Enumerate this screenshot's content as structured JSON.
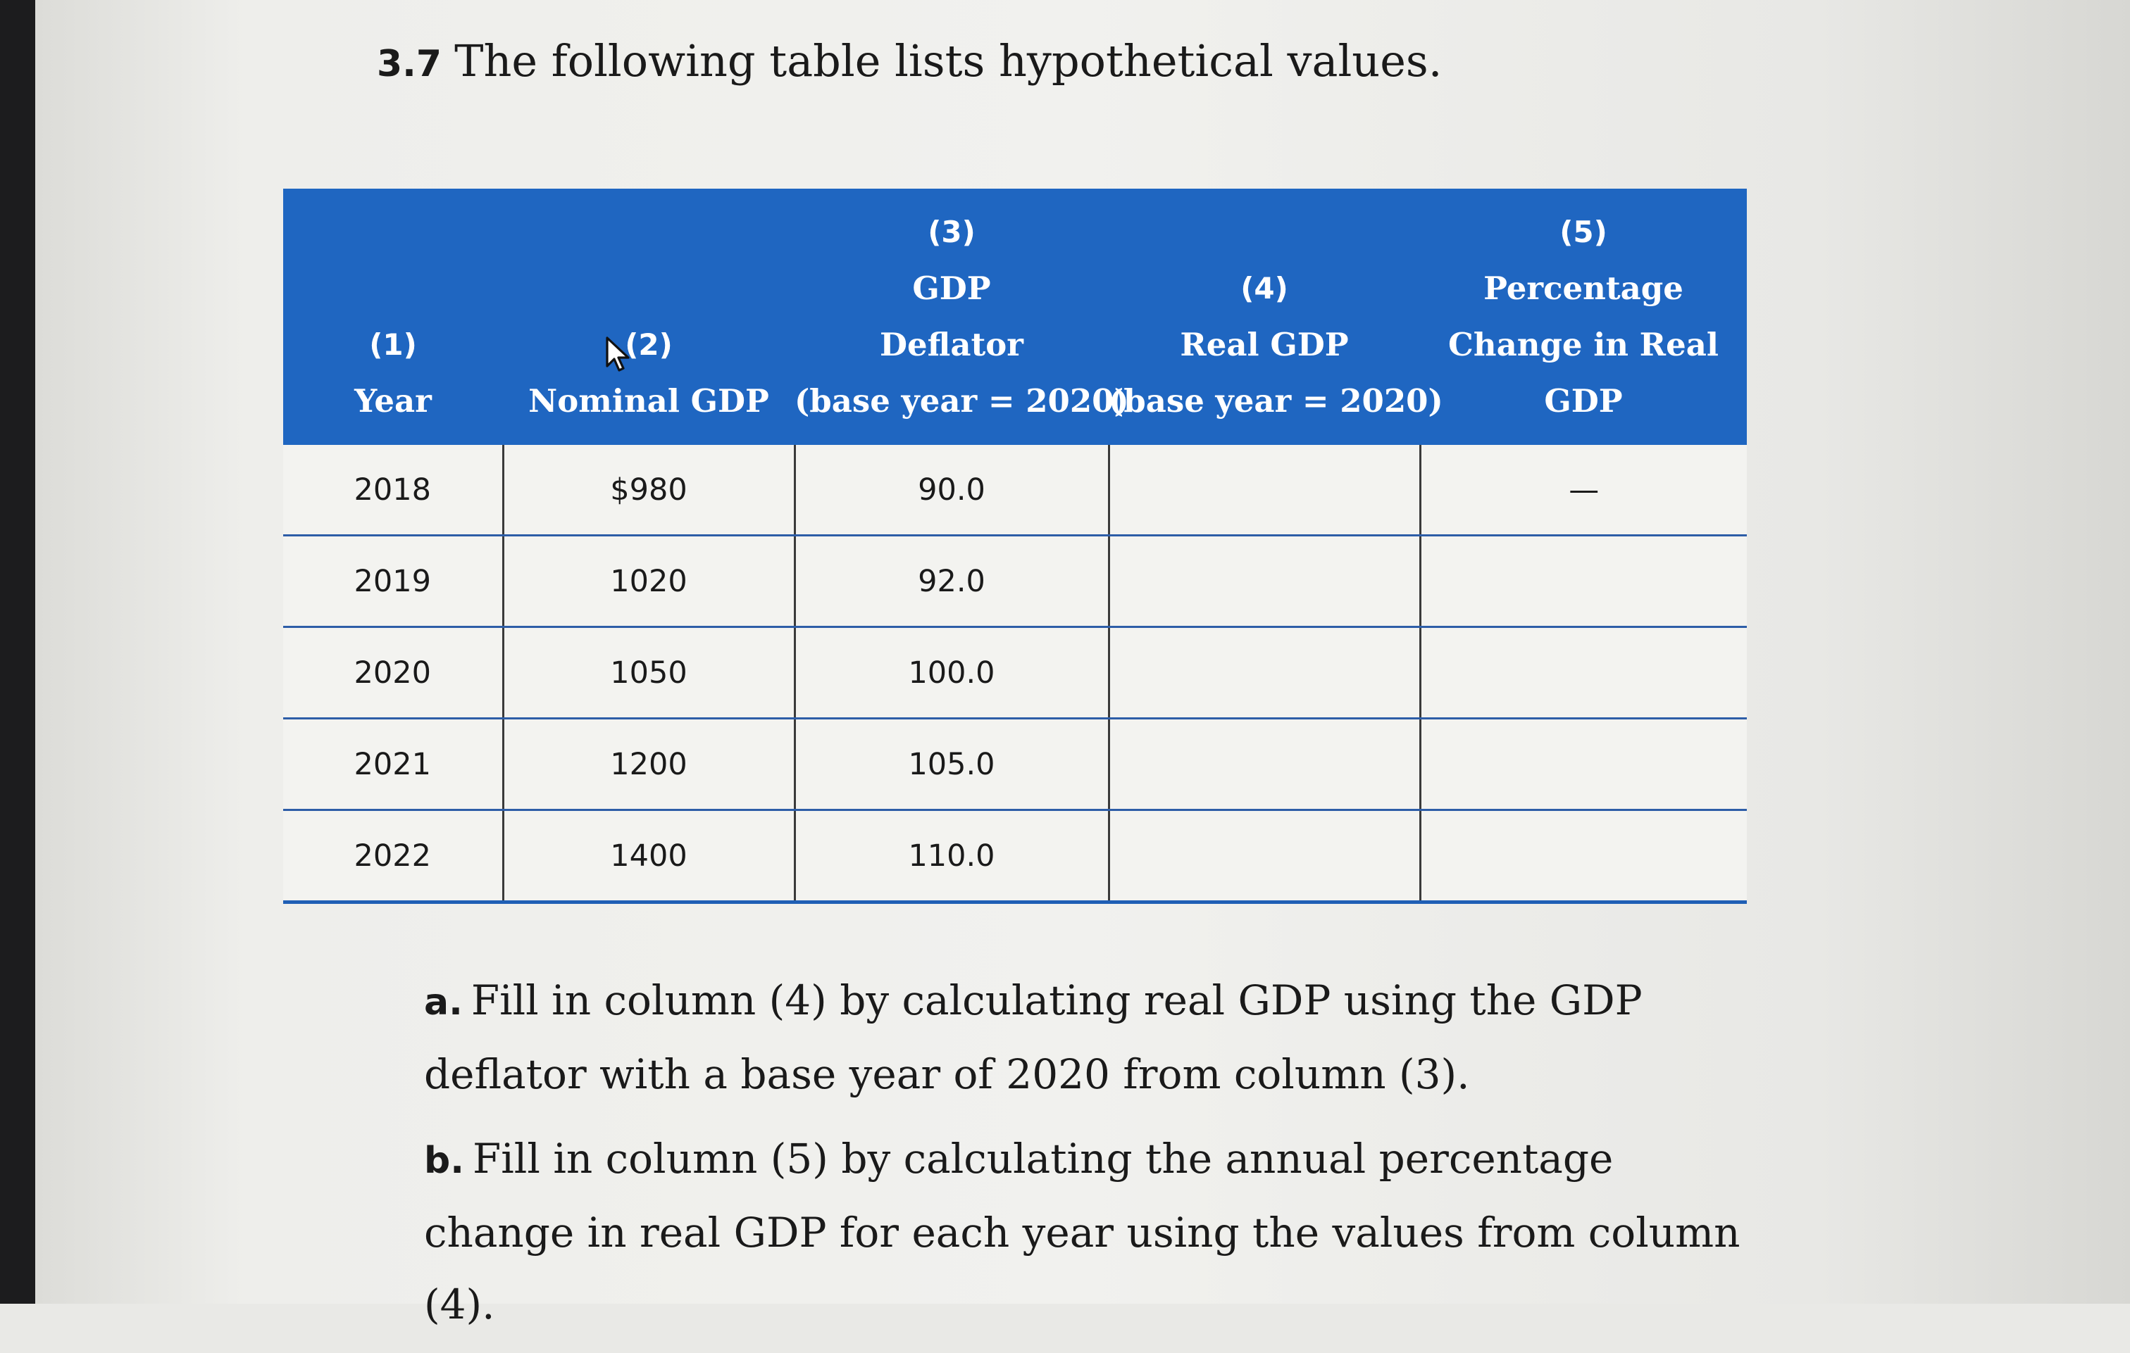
{
  "problem": {
    "number": "3.7",
    "title": "The following table lists hypothetical values."
  },
  "table": {
    "headers": [
      {
        "num": "(1)",
        "lines": [
          "Year"
        ]
      },
      {
        "num": "(2)",
        "lines": [
          "Nominal GDP"
        ]
      },
      {
        "num": "(3)",
        "lines": [
          "GDP",
          "Deflator",
          "(base year = 2020)"
        ]
      },
      {
        "num": "(4)",
        "lines": [
          "Real GDP",
          "(base year = 2020)"
        ]
      },
      {
        "num": "(5)",
        "lines": [
          "Percentage",
          "Change in Real",
          "GDP"
        ]
      }
    ],
    "rows": [
      [
        "2018",
        "$980",
        "90.0",
        "",
        "—"
      ],
      [
        "2019",
        "1020",
        "92.0",
        "",
        ""
      ],
      [
        "2020",
        "1050",
        "100.0",
        "",
        ""
      ],
      [
        "2021",
        "1200",
        "105.0",
        "",
        ""
      ],
      [
        "2022",
        "1400",
        "110.0",
        "",
        ""
      ]
    ],
    "header_color": "#1f66c1"
  },
  "instructions": [
    {
      "letter": "a.",
      "text": "Fill in column (4) by calculating real GDP using the GDP deflator with a base year of 2020 from column (3)."
    },
    {
      "letter": "b.",
      "text": "Fill in column (5) by calculating the annual percentage change in real GDP for each year using the values from column (4)."
    }
  ]
}
